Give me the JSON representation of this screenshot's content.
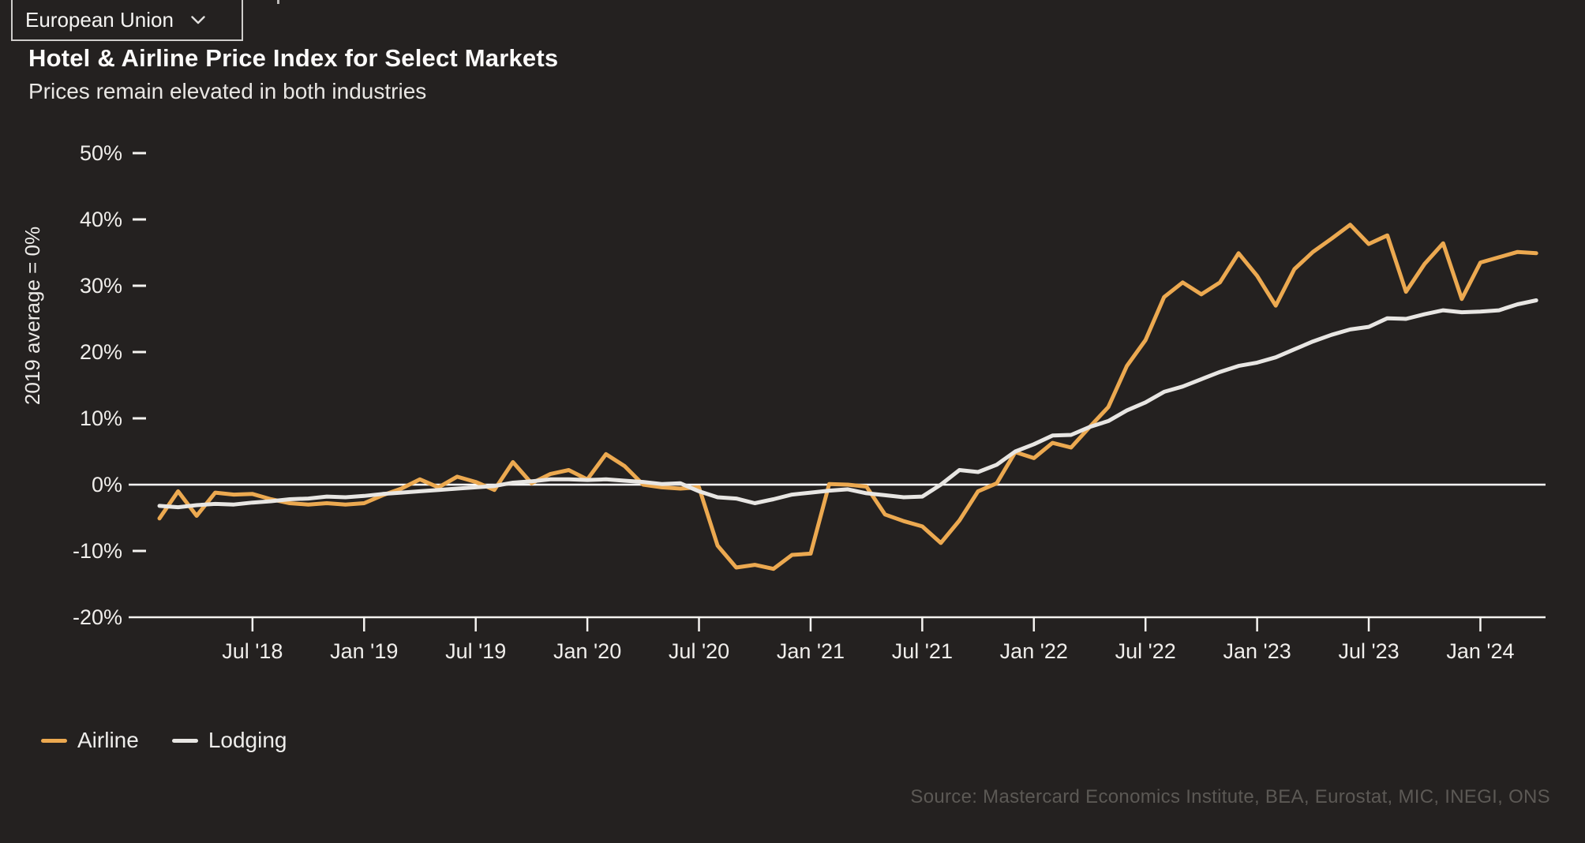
{
  "region_selector": {
    "value": "European Union"
  },
  "header": {
    "title": "Hotel & Airline Price Index for Select Markets",
    "subtitle": "Prices remain elevated in both industries"
  },
  "chart_data": {
    "type": "line",
    "x_frequency": "monthly",
    "x_start": "Feb 2018",
    "x_end": "Apr 2024",
    "y_axis": {
      "title": "2019 average = 0%",
      "unit": "%",
      "min": -20,
      "max": 50,
      "ticks": [
        {
          "value": 50,
          "label": "50%"
        },
        {
          "value": 40,
          "label": "40%"
        },
        {
          "value": 30,
          "label": "30%"
        },
        {
          "value": 20,
          "label": "20%"
        },
        {
          "value": 10,
          "label": "10%"
        },
        {
          "value": 0,
          "label": "0%"
        },
        {
          "value": -10,
          "label": "-10%"
        },
        {
          "value": -20,
          "label": "-20%"
        }
      ]
    },
    "x_axis": {
      "ticks": [
        {
          "label": "Jul '18",
          "month_index": 5
        },
        {
          "label": "Jan '19",
          "month_index": 11
        },
        {
          "label": "Jul '19",
          "month_index": 17
        },
        {
          "label": "Jan '20",
          "month_index": 23
        },
        {
          "label": "Jul '20",
          "month_index": 29
        },
        {
          "label": "Jan '21",
          "month_index": 35
        },
        {
          "label": "Jul '21",
          "month_index": 41
        },
        {
          "label": "Jan '22",
          "month_index": 47
        },
        {
          "label": "Jul '22",
          "month_index": 53
        },
        {
          "label": "Jan '23",
          "month_index": 59
        },
        {
          "label": "Jul '23",
          "month_index": 65
        },
        {
          "label": "Jan '24",
          "month_index": 71
        }
      ]
    },
    "series": [
      {
        "name": "Airline",
        "color": "#ECA950",
        "values": [
          -5.1,
          -1.0,
          -4.7,
          -1.2,
          -1.5,
          -1.4,
          -2.2,
          -2.8,
          -3.0,
          -2.8,
          -3.0,
          -2.8,
          -1.6,
          -0.6,
          0.8,
          -0.4,
          1.2,
          0.4,
          -0.8,
          3.4,
          0.2,
          1.6,
          2.2,
          0.8,
          4.6,
          2.8,
          0.0,
          -0.4,
          -0.6,
          -0.4,
          -9.2,
          -12.5,
          -12.1,
          -12.7,
          -10.6,
          -10.4,
          0.1,
          0.0,
          -0.3,
          -4.5,
          -5.5,
          -6.3,
          -8.8,
          -5.4,
          -1.0,
          0.2,
          4.9,
          4.0,
          6.3,
          5.6,
          8.7,
          11.7,
          17.9,
          21.8,
          28.3,
          30.5,
          28.7,
          30.5,
          34.9,
          31.5,
          27.0,
          32.5,
          35.1,
          37.1,
          39.2,
          36.3,
          37.6,
          29.1,
          33.3,
          36.4,
          28.0,
          33.5,
          34.3,
          35.1,
          34.9
        ]
      },
      {
        "name": "Lodging",
        "color": "#E8E6E3",
        "values": [
          -3.2,
          -3.4,
          -3.1,
          -2.9,
          -3.0,
          -2.7,
          -2.5,
          -2.2,
          -2.1,
          -1.8,
          -1.9,
          -1.7,
          -1.4,
          -1.2,
          -1.0,
          -0.8,
          -0.6,
          -0.4,
          -0.2,
          0.3,
          0.5,
          0.8,
          0.8,
          0.7,
          0.8,
          0.6,
          0.4,
          0.1,
          0.2,
          -1.0,
          -1.9,
          -2.1,
          -2.8,
          -2.2,
          -1.5,
          -1.2,
          -0.9,
          -0.7,
          -1.3,
          -1.6,
          -1.9,
          -1.8,
          0.0,
          2.2,
          1.9,
          3.0,
          5.0,
          6.1,
          7.4,
          7.5,
          8.7,
          9.6,
          11.2,
          12.4,
          14.0,
          14.8,
          15.9,
          17.0,
          17.9,
          18.4,
          19.2,
          20.4,
          21.6,
          22.6,
          23.4,
          23.8,
          25.1,
          25.0,
          25.7,
          26.3,
          26.0,
          26.1,
          26.3,
          27.2,
          27.8
        ]
      }
    ]
  },
  "source": {
    "text": "Source: Mastercard Economics Institute, BEA, Eurostat, MIC, INEGI, ONS"
  },
  "colors": {
    "background": "#242120",
    "zero_line": "#FFFFFF",
    "axis_line": "#F5F3F0",
    "tick_text": "#F0EEEB",
    "axis_title_text": "#ECEAE7",
    "source_text": "#5C5955"
  }
}
